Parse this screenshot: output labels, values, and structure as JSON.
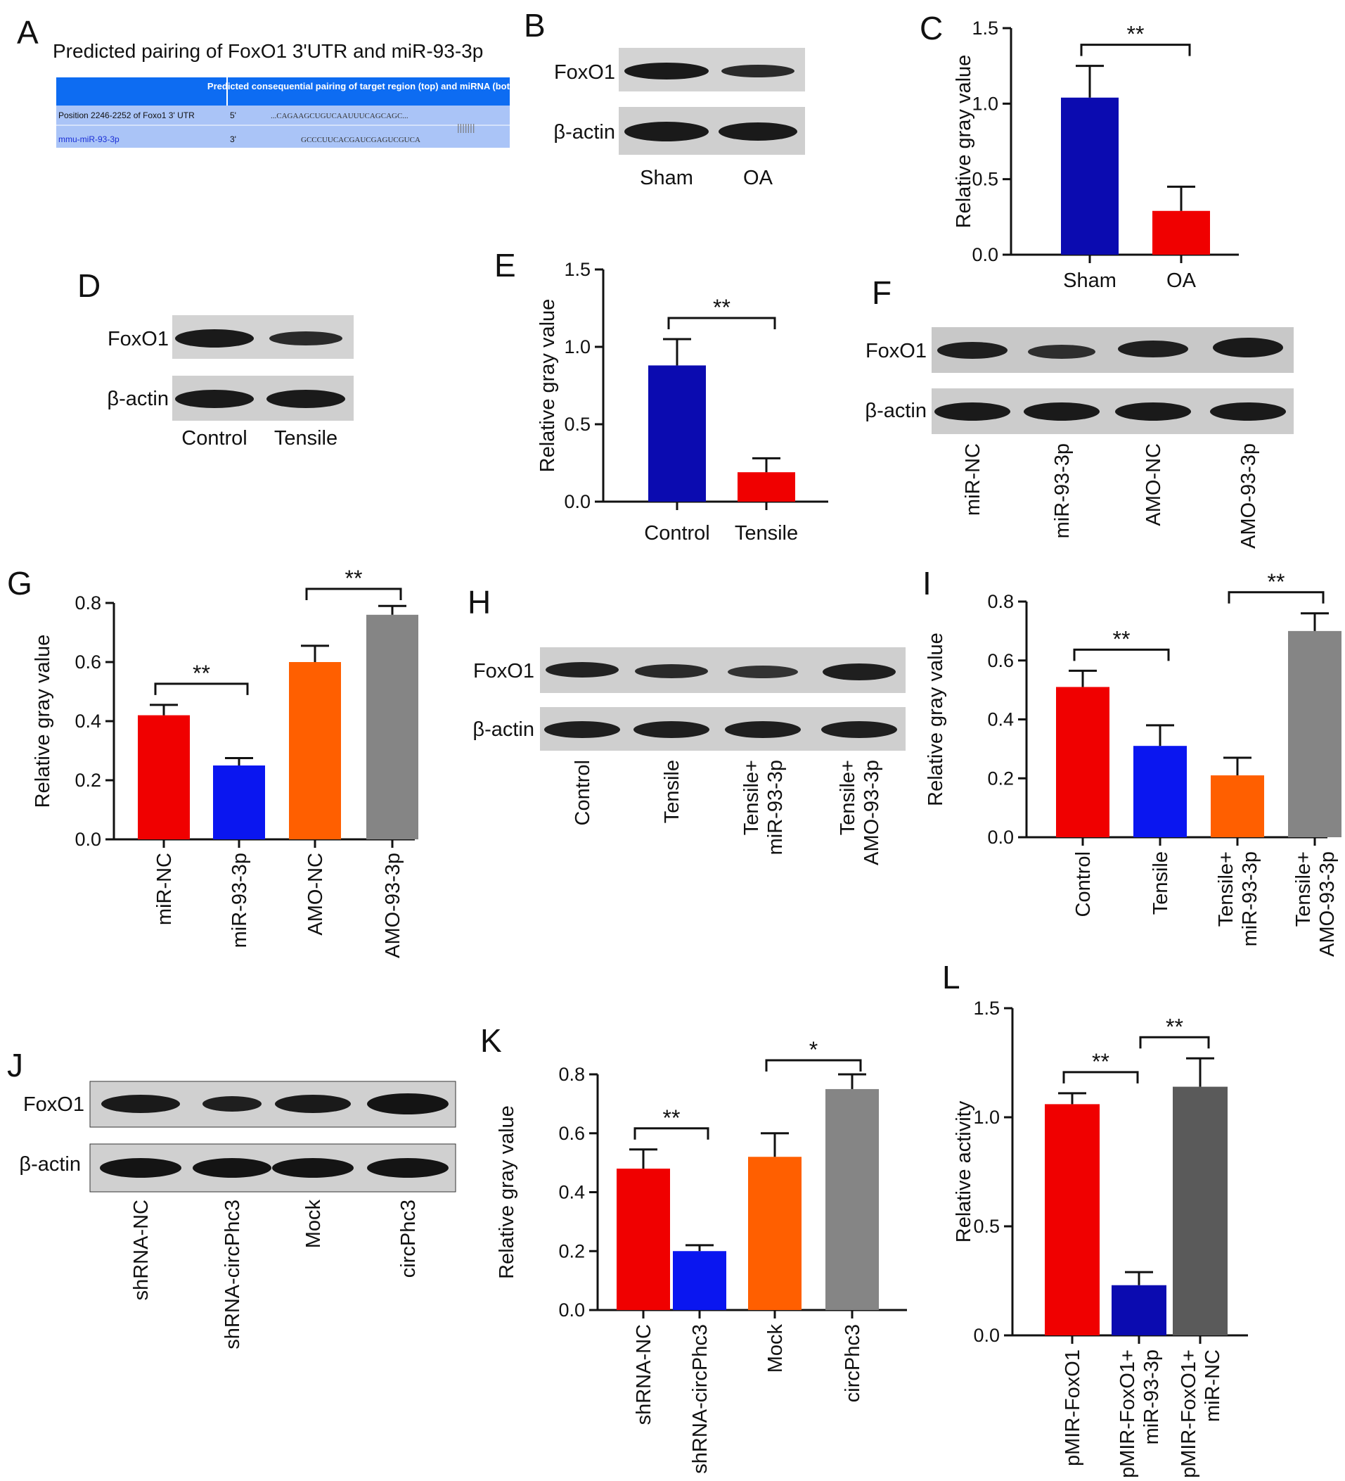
{
  "colors": {
    "red": "#f00000",
    "navy": "#0b0bb0",
    "blue": "#0a16f0",
    "orange": "#ff5f00",
    "gray": "#858585",
    "darkgray": "#5a5a5a",
    "table_header": "#0d6cf2",
    "table_body": "#aac4f7"
  },
  "panelA": {
    "label": "A",
    "title": "Predicted pairing of FoxO1 3'UTR and miR-93-3p",
    "header": "Predicted consequential pairing of target region (top) and miRNA (bottom)",
    "row1_label": "Position 2246-2252 of Foxo1 3' UTR",
    "row1_end": "5'",
    "row1_seq": "...CAGAAGCUGUCAAUUUCAGCAGC...",
    "pairing": "|||||||",
    "row2_label": "mmu-miR-93-3p",
    "row2_end": "3'",
    "row2_seq": "GCCCUUCACGAUCGAGUCGUCA"
  },
  "blots": {
    "B": {
      "label": "B",
      "proteins": [
        "FoxO1",
        "β-actin"
      ],
      "lanes": [
        "Sham",
        "OA"
      ]
    },
    "D": {
      "label": "D",
      "proteins": [
        "FoxO1",
        "β-actin"
      ],
      "lanes": [
        "Control",
        "Tensile"
      ]
    },
    "F": {
      "label": "F",
      "proteins": [
        "FoxO1",
        "β-actin"
      ],
      "lanes": [
        "miR-NC",
        "miR-93-3p",
        "AMO-NC",
        "AMO-93-3p"
      ]
    },
    "H": {
      "label": "H",
      "proteins": [
        "FoxO1",
        "β-actin"
      ],
      "lanes": [
        "Control",
        "Tensile",
        "Tensile+\nmiR-93-3p",
        "Tensile+\nAMO-93-3p"
      ]
    },
    "J": {
      "label": "J",
      "proteins": [
        "FoxO1",
        "β-actin"
      ],
      "lanes": [
        "shRNA-NC",
        "shRNA-circPhc3",
        "Mock",
        "circPhc3"
      ]
    }
  },
  "chart_data": [
    {
      "panel": "C",
      "type": "bar",
      "categories": [
        "Sham",
        "OA"
      ],
      "values": [
        1.04,
        0.29
      ],
      "errors": [
        0.21,
        0.16
      ],
      "ylabel": "Relative gray value",
      "ylim": [
        0,
        1.5
      ],
      "yticks": [
        "0.0",
        "0.5",
        "1.0",
        "1.5"
      ],
      "colors": [
        "#0b0bb0",
        "#f00000"
      ],
      "significance": [
        {
          "from": 0,
          "to": 1,
          "label": "**"
        }
      ]
    },
    {
      "panel": "E",
      "type": "bar",
      "categories": [
        "Control",
        "Tensile"
      ],
      "values": [
        0.88,
        0.19
      ],
      "errors": [
        0.17,
        0.09
      ],
      "ylabel": "Relative gray value",
      "ylim": [
        0,
        1.5
      ],
      "yticks": [
        "0.0",
        "0.5",
        "1.0",
        "1.5"
      ],
      "colors": [
        "#0b0bb0",
        "#f00000"
      ],
      "significance": [
        {
          "from": 0,
          "to": 1,
          "label": "**"
        }
      ]
    },
    {
      "panel": "G",
      "type": "bar",
      "categories": [
        "miR-NC",
        "miR-93-3p",
        "AMO-NC",
        "AMO-93-3p"
      ],
      "values": [
        0.42,
        0.25,
        0.6,
        0.76
      ],
      "errors": [
        0.035,
        0.025,
        0.055,
        0.03
      ],
      "ylabel": "Relative gray value",
      "ylim": [
        0,
        0.8
      ],
      "yticks": [
        "0.0",
        "0.2",
        "0.4",
        "0.6",
        "0.8"
      ],
      "colors": [
        "#f00000",
        "#0a16f0",
        "#ff5f00",
        "#858585"
      ],
      "significance": [
        {
          "from": 0,
          "to": 1,
          "label": "**"
        },
        {
          "from": 2,
          "to": 3,
          "label": "**"
        }
      ]
    },
    {
      "panel": "I",
      "type": "bar",
      "categories": [
        "Control",
        "Tensile",
        "Tensile+\nmiR-93-3p",
        "Tensile+\nAMO-93-3p"
      ],
      "values": [
        0.51,
        0.31,
        0.21,
        0.7
      ],
      "errors": [
        0.055,
        0.07,
        0.06,
        0.06
      ],
      "ylabel": "Relative gray value",
      "ylim": [
        0,
        0.8
      ],
      "yticks": [
        "0.0",
        "0.2",
        "0.4",
        "0.6",
        "0.8"
      ],
      "colors": [
        "#f00000",
        "#0a16f0",
        "#ff5f00",
        "#858585"
      ],
      "significance": [
        {
          "from": 0,
          "to": 1,
          "label": "**"
        },
        {
          "from": 2,
          "to": 3,
          "label": "**"
        }
      ]
    },
    {
      "panel": "K",
      "type": "bar",
      "categories": [
        "shRNA-NC",
        "shRNA-circPhc3",
        "Mock",
        "circPhc3"
      ],
      "values": [
        0.48,
        0.2,
        0.52,
        0.75
      ],
      "errors": [
        0.065,
        0.02,
        0.08,
        0.05
      ],
      "ylabel": "Relative gray value",
      "ylim": [
        0,
        0.8
      ],
      "yticks": [
        "0.0",
        "0.2",
        "0.4",
        "0.6",
        "0.8"
      ],
      "colors": [
        "#f00000",
        "#0a16f0",
        "#ff5f00",
        "#858585"
      ],
      "significance": [
        {
          "from": 0,
          "to": 1,
          "label": "**"
        },
        {
          "from": 2,
          "to": 3,
          "label": "*"
        }
      ]
    },
    {
      "panel": "L",
      "type": "bar",
      "categories": [
        "pMIR-FoxO1",
        "pMIR-FoxO1+\nmiR-93-3p",
        "pMIR-FoxO1+\nmiR-NC"
      ],
      "values": [
        1.06,
        0.23,
        1.14
      ],
      "errors": [
        0.05,
        0.06,
        0.13
      ],
      "ylabel": "Relative activity",
      "ylim": [
        0,
        1.5
      ],
      "yticks": [
        "0.0",
        "0.5",
        "1.0",
        "1.5"
      ],
      "colors": [
        "#f00000",
        "#0b0bb0",
        "#5a5a5a"
      ],
      "significance": [
        {
          "from": 0,
          "to": 1,
          "label": "**"
        },
        {
          "from": 1,
          "to": 2,
          "label": "**"
        }
      ]
    }
  ]
}
